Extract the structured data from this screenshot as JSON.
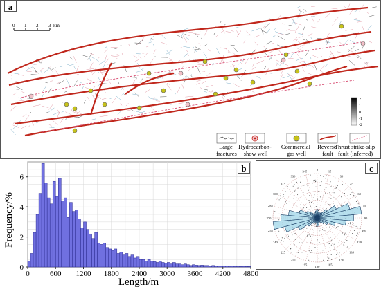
{
  "panels": {
    "a": {
      "label": "a",
      "scale_bar": {
        "ticks": [
          "0",
          "1",
          "2",
          "3"
        ],
        "unit": "km"
      },
      "colorbar_ticks": [
        "2",
        "1",
        "0",
        "-1",
        "-2"
      ],
      "legend": [
        {
          "label_lines": [
            "Large",
            "fractures"
          ]
        },
        {
          "label_lines": [
            "Hydrocarbon-",
            "show well"
          ]
        },
        {
          "label_lines": [
            "Commercial",
            "gas well"
          ]
        },
        {
          "label_lines": [
            "Reverse",
            "fault"
          ]
        },
        {
          "label_lines": [
            "Thrust strike-slip",
            "fault (inferred)"
          ]
        }
      ]
    },
    "b": {
      "label": "b",
      "ylabel": "Frequency/%",
      "xlabel": "Length/m",
      "xticks": [
        "0",
        "600",
        "1200",
        "1800",
        "2400",
        "3000",
        "3600",
        "4200",
        "4800"
      ],
      "yticks": [
        "0",
        "2",
        "4",
        "6"
      ]
    },
    "c": {
      "label": "c",
      "azimuth_labels": [
        "0",
        "15",
        "30",
        "45",
        "60",
        "75",
        "90",
        "105",
        "120",
        "135",
        "150",
        "165",
        "180",
        "195",
        "210",
        "225",
        "240",
        "255",
        "270",
        "285",
        "300",
        "315",
        "330",
        "345"
      ]
    }
  },
  "chart_data": [
    {
      "type": "bar",
      "panel": "b",
      "xlabel": "Length/m",
      "ylabel": "Frequency/%",
      "xlim": [
        0,
        4800
      ],
      "ylim": [
        0,
        7
      ],
      "bin_width": 60,
      "bin_start": 0,
      "values": [
        0.4,
        0.9,
        2.3,
        3.5,
        4.9,
        6.9,
        5.6,
        4.6,
        4.2,
        5.7,
        4.7,
        5.9,
        4.4,
        4.6,
        3.3,
        4.3,
        3.7,
        3.8,
        3.2,
        2.6,
        3.0,
        2.5,
        2.2,
        1.9,
        2.3,
        1.6,
        1.5,
        1.6,
        1.3,
        1.2,
        1.1,
        1.2,
        0.9,
        1.0,
        0.8,
        0.9,
        0.7,
        0.8,
        0.6,
        0.7,
        0.5,
        0.5,
        0.4,
        0.5,
        0.4,
        0.35,
        0.3,
        0.4,
        0.3,
        0.25,
        0.3,
        0.2,
        0.3,
        0.2,
        0.2,
        0.15,
        0.2,
        0.15,
        0.1,
        0.15,
        0.12,
        0.1,
        0.12,
        0.1,
        0.1,
        0.08,
        0.1,
        0.08,
        0.08,
        0.06,
        0.07,
        0.06,
        0.05,
        0.06,
        0.05,
        0.05,
        0.04,
        0.05,
        0.04,
        0.04
      ]
    },
    {
      "type": "rose",
      "panel": "c",
      "bin_width_deg": 10,
      "directions_deg": [
        0,
        10,
        20,
        30,
        40,
        50,
        60,
        70,
        80,
        90,
        100,
        110,
        120,
        130,
        140,
        150,
        160,
        170
      ],
      "values": [
        0.18,
        0.12,
        0.1,
        0.12,
        0.15,
        0.25,
        0.45,
        0.72,
        0.95,
        0.78,
        0.62,
        0.4,
        0.25,
        0.18,
        0.12,
        0.1,
        0.12,
        0.15
      ]
    }
  ]
}
